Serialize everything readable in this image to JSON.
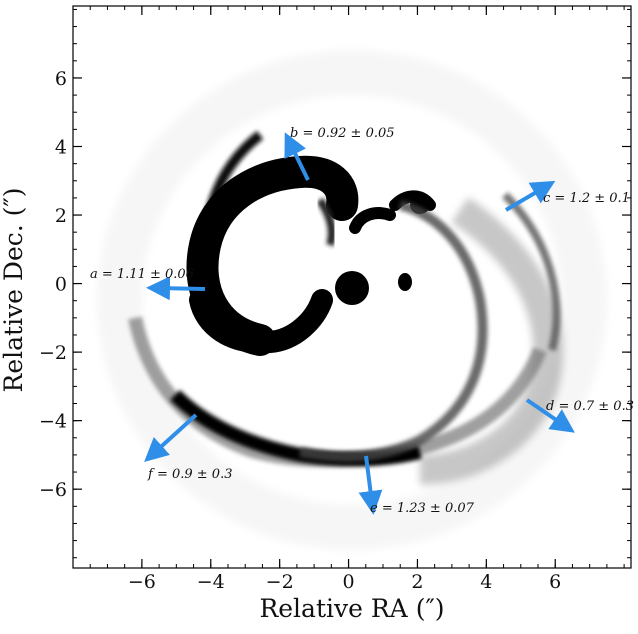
{
  "figure": {
    "xlabel": "Relative RA (″)",
    "ylabel": "Relative Dec. (″)",
    "x_ticks": [
      "−6",
      "−4",
      "−2",
      "0",
      "2",
      "4",
      "6"
    ],
    "y_ticks": [
      "6",
      "4",
      "2",
      "0",
      "−2",
      "−4",
      "−6"
    ],
    "xlim": [
      -8,
      8.2
    ],
    "ylim": [
      -8.3,
      8.1
    ],
    "arrow_color": "#2f8fe8"
  },
  "annotations": {
    "a": "a = 1.11 ± 0.06",
    "b": "b = 0.92 ± 0.05",
    "c": "c = 1.2 ± 0.1",
    "d": "d = 0.7 ± 0.3",
    "e": "e = 1.23 ± 0.07",
    "f": "f = 0.9 ± 0.3"
  }
}
